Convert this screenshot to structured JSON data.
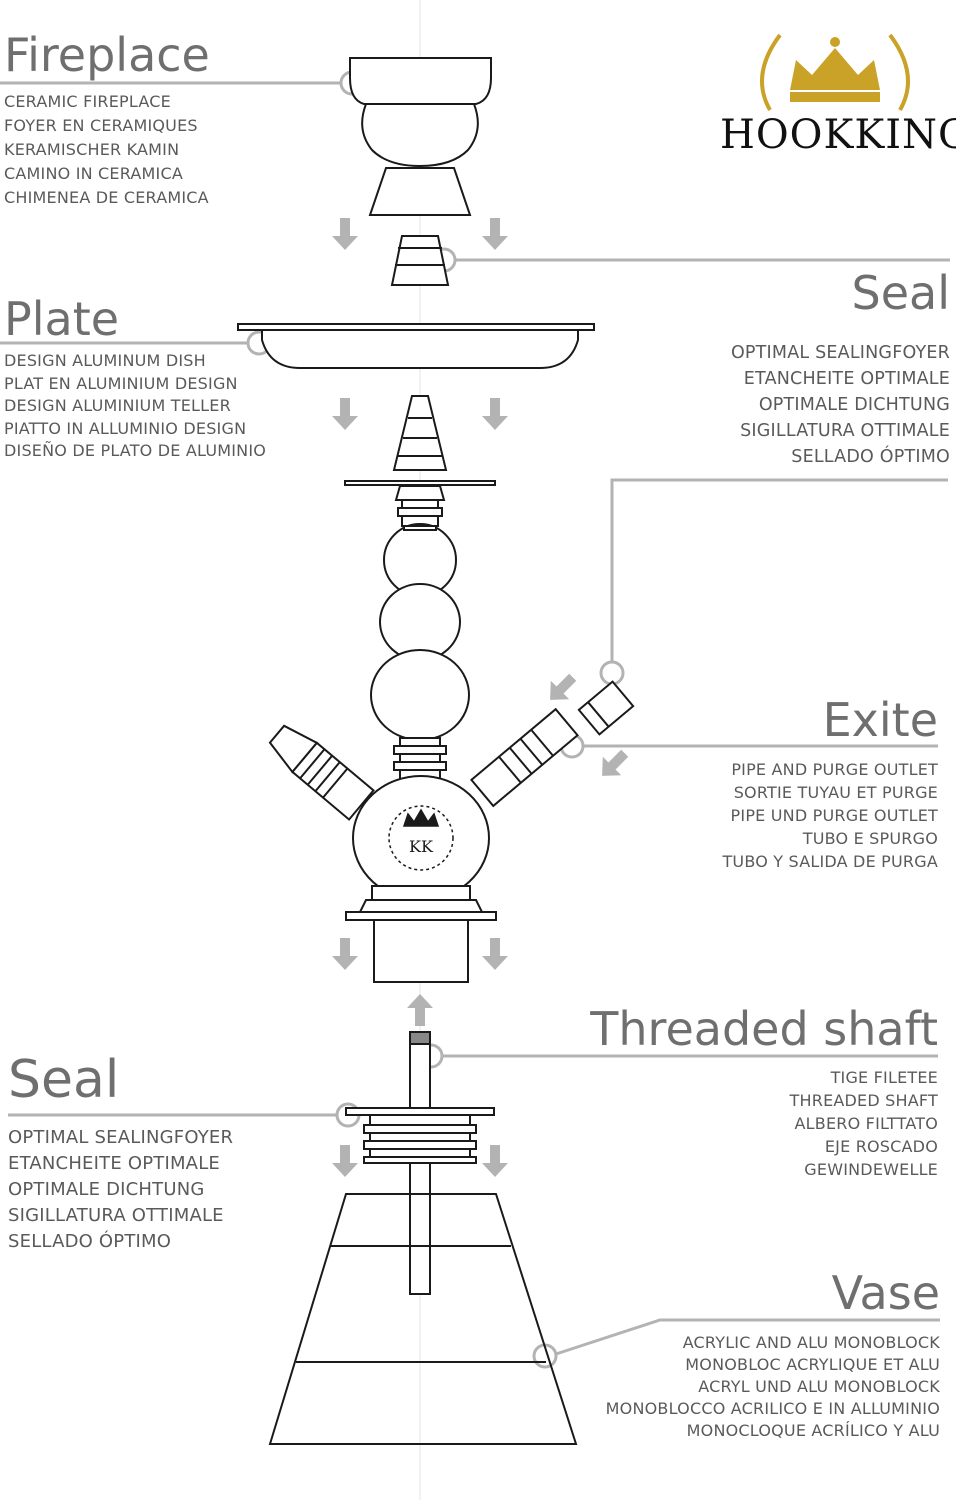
{
  "brand": {
    "name": "HOOKKING"
  },
  "colors": {
    "line": "#b3b3b3",
    "arrow": "#b3b3b3",
    "ink": "#1a1a1a",
    "gold": "#c9a227"
  },
  "parts": {
    "fireplace": {
      "title": "Fireplace",
      "lines": [
        "CERAMIC FIREPLACE",
        "FOYER EN CERAMIQUES",
        "KERAMISCHER KAMIN",
        "CAMINO IN CERAMICA",
        "CHIMENEA DE CERAMICA"
      ]
    },
    "seal_top": {
      "title": "Seal",
      "lines": [
        "OPTIMAL SEALINGFOYER",
        "ETANCHEITE OPTIMALE",
        "OPTIMALE DICHTUNG",
        "SIGILLATURA OTTIMALE",
        "SELLADO ÓPTIMO"
      ]
    },
    "plate": {
      "title": "Plate",
      "lines": [
        "DESIGN ALUMINUM DISH",
        "PLAT EN ALUMINIUM DESIGN",
        "DESIGN ALUMINIUM TELLER",
        "PIATTO IN ALLUMINIO DESIGN",
        "DISEÑO DE PLATO DE ALUMINIO"
      ]
    },
    "exite": {
      "title": "Exite",
      "lines": [
        "PIPE AND PURGE OUTLET",
        "SORTIE TUYAU ET PURGE",
        "PIPE UND PURGE OUTLET",
        "TUBO E SPURGO",
        "TUBO Y SALIDA DE PURGA"
      ]
    },
    "threaded_shaft": {
      "title": "Threaded shaft",
      "lines": [
        "TIGE FILETEE",
        "THREADED SHAFT",
        "ALBERO FILTTATO",
        "EJE ROSCADO",
        "GEWINDEWELLE"
      ]
    },
    "seal_bottom": {
      "title": "Seal",
      "lines": [
        "OPTIMAL SEALINGFOYER",
        "ETANCHEITE OPTIMALE",
        "OPTIMALE DICHTUNG",
        "SIGILLATURA OTTIMALE",
        "SELLADO ÓPTIMO"
      ]
    },
    "vase": {
      "title": "Vase",
      "lines": [
        "ACRYLIC AND ALU MONOBLOCK",
        "MONOBLOC ACRYLIQUE ET ALU",
        "ACRYL UND ALU MONOBLOCK",
        "MONOBLOCCO ACRILICO E IN ALLUMINIO",
        "MONOCLOQUE ACRÍLICO Y ALU"
      ]
    }
  }
}
